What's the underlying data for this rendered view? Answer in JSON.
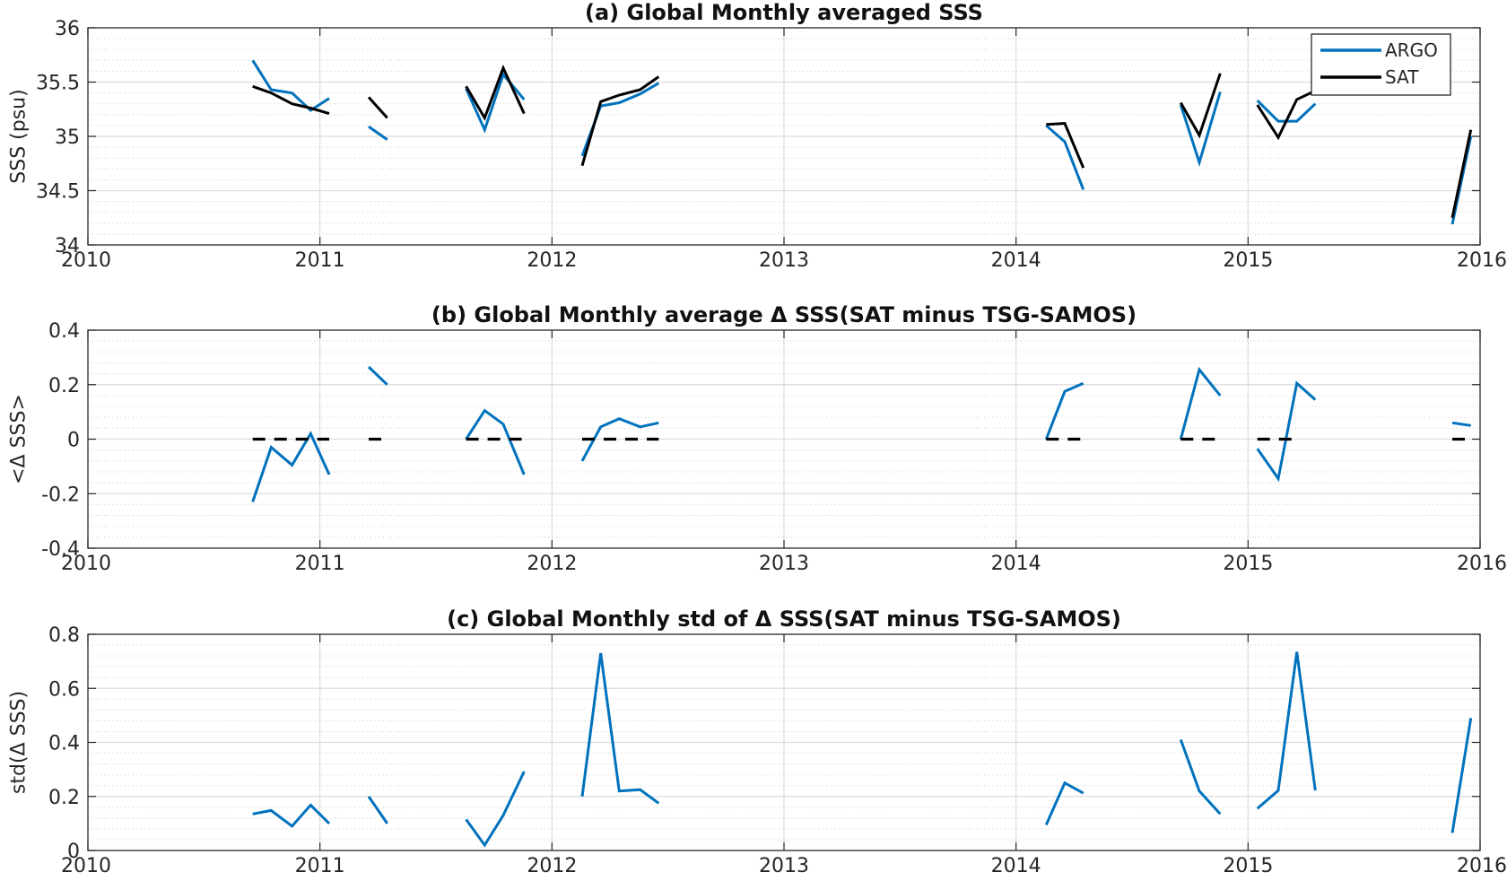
{
  "chart_data": [
    {
      "type": "line",
      "title": "(a) Global Monthly averaged SSS",
      "xlabel": "",
      "ylabel": "SSS (psu)",
      "xlim": [
        2010,
        2016
      ],
      "ylim": [
        34,
        36
      ],
      "xticks": [
        "2010",
        "2011",
        "2012",
        "2013",
        "2014",
        "2015",
        "2016"
      ],
      "yticks": [
        "34",
        "34.5",
        "35",
        "35.5",
        "36"
      ],
      "grid": true,
      "minor_grid": true,
      "legend": {
        "placement": "top-right",
        "entries": [
          "ARGO",
          "SAT"
        ]
      },
      "series": [
        {
          "name": "ARGO",
          "color": "#0072BD",
          "segments": [
            [
              [
                2010.71,
                35.7
              ],
              [
                2010.79,
                35.43
              ],
              [
                2010.88,
                35.4
              ],
              [
                2010.96,
                35.24
              ],
              [
                2011.04,
                35.35
              ]
            ],
            [
              [
                2011.21,
                35.09
              ],
              [
                2011.29,
                34.97
              ]
            ],
            [
              [
                2011.63,
                35.44
              ],
              [
                2011.71,
                35.06
              ],
              [
                2011.79,
                35.57
              ],
              [
                2011.88,
                35.34
              ]
            ],
            [
              [
                2012.13,
                34.82
              ],
              [
                2012.21,
                35.28
              ],
              [
                2012.29,
                35.31
              ],
              [
                2012.38,
                35.39
              ],
              [
                2012.46,
                35.49
              ]
            ],
            [
              [
                2014.13,
                35.1
              ],
              [
                2014.21,
                34.95
              ],
              [
                2014.29,
                34.51
              ]
            ],
            [
              [
                2014.71,
                35.29
              ],
              [
                2014.79,
                34.76
              ],
              [
                2014.88,
                35.41
              ]
            ],
            [
              [
                2015.04,
                35.33
              ],
              [
                2015.13,
                35.14
              ],
              [
                2015.21,
                35.14
              ],
              [
                2015.29,
                35.3
              ]
            ],
            [
              [
                2015.88,
                34.19
              ],
              [
                2015.96,
                35.0
              ]
            ]
          ]
        },
        {
          "name": "SAT",
          "color": "#000000",
          "segments": [
            [
              [
                2010.71,
                35.46
              ],
              [
                2010.79,
                35.4
              ],
              [
                2010.88,
                35.3
              ],
              [
                2010.96,
                35.26
              ],
              [
                2011.04,
                35.21
              ]
            ],
            [
              [
                2011.21,
                35.36
              ],
              [
                2011.29,
                35.17
              ]
            ],
            [
              [
                2011.63,
                35.46
              ],
              [
                2011.71,
                35.17
              ],
              [
                2011.79,
                35.63
              ],
              [
                2011.88,
                35.21
              ]
            ],
            [
              [
                2012.13,
                34.73
              ],
              [
                2012.21,
                35.32
              ],
              [
                2012.29,
                35.38
              ],
              [
                2012.38,
                35.43
              ],
              [
                2012.46,
                35.55
              ]
            ],
            [
              [
                2014.13,
                35.11
              ],
              [
                2014.21,
                35.12
              ],
              [
                2014.29,
                34.71
              ]
            ],
            [
              [
                2014.71,
                35.31
              ],
              [
                2014.79,
                35.01
              ],
              [
                2014.88,
                35.58
              ]
            ],
            [
              [
                2015.04,
                35.29
              ],
              [
                2015.13,
                34.99
              ],
              [
                2015.21,
                35.34
              ],
              [
                2015.29,
                35.42
              ],
              [
                2015.33,
                35.46
              ]
            ],
            [
              [
                2015.88,
                34.25
              ],
              [
                2015.96,
                35.06
              ]
            ]
          ]
        }
      ]
    },
    {
      "type": "line",
      "title": "(b) Global Monthly average Δ SSS(SAT minus TSG-SAMOS)",
      "xlabel": "",
      "ylabel": "<Δ SSS>",
      "xlim": [
        2010,
        2016
      ],
      "ylim": [
        -0.4,
        0.4
      ],
      "xticks": [
        "2010",
        "2011",
        "2012",
        "2013",
        "2014",
        "2015",
        "2016"
      ],
      "yticks": [
        "-0.4",
        "-0.2",
        "0",
        "0.2",
        "0.4"
      ],
      "grid": true,
      "minor_grid": true,
      "series": [
        {
          "color": "#0072BD",
          "segments": [
            [
              [
                2010.71,
                -0.23
              ],
              [
                2010.79,
                -0.03
              ],
              [
                2010.88,
                -0.095
              ],
              [
                2010.96,
                0.02
              ],
              [
                2011.04,
                -0.13
              ]
            ],
            [
              [
                2011.21,
                0.265
              ],
              [
                2011.29,
                0.2
              ]
            ],
            [
              [
                2011.63,
                0.0
              ],
              [
                2011.71,
                0.105
              ],
              [
                2011.79,
                0.055
              ],
              [
                2011.88,
                -0.13
              ]
            ],
            [
              [
                2012.13,
                -0.08
              ],
              [
                2012.21,
                0.045
              ],
              [
                2012.29,
                0.075
              ],
              [
                2012.38,
                0.045
              ],
              [
                2012.46,
                0.06
              ]
            ],
            [
              [
                2014.13,
                0.0
              ],
              [
                2014.21,
                0.175
              ],
              [
                2014.29,
                0.205
              ]
            ],
            [
              [
                2014.71,
                0.0
              ],
              [
                2014.79,
                0.255
              ],
              [
                2014.88,
                0.16
              ]
            ],
            [
              [
                2015.04,
                -0.035
              ],
              [
                2015.13,
                -0.145
              ],
              [
                2015.21,
                0.205
              ],
              [
                2015.29,
                0.145
              ]
            ],
            [
              [
                2015.88,
                0.06
              ],
              [
                2015.96,
                0.05
              ]
            ]
          ]
        },
        {
          "color": "#000000",
          "style": "dashed",
          "segments": [
            [
              [
                2010.71,
                0
              ],
              [
                2011.04,
                0
              ]
            ],
            [
              [
                2011.21,
                0
              ],
              [
                2011.29,
                0
              ]
            ],
            [
              [
                2011.63,
                0
              ],
              [
                2011.88,
                0
              ]
            ],
            [
              [
                2012.13,
                0
              ],
              [
                2012.46,
                0
              ]
            ],
            [
              [
                2014.13,
                0
              ],
              [
                2014.29,
                0
              ]
            ],
            [
              [
                2014.71,
                0
              ],
              [
                2014.88,
                0
              ]
            ],
            [
              [
                2015.04,
                0
              ],
              [
                2015.21,
                0
              ]
            ],
            [
              [
                2015.88,
                0
              ],
              [
                2015.96,
                0
              ]
            ]
          ]
        }
      ]
    },
    {
      "type": "line",
      "title": "(c) Global Monthly std of Δ SSS(SAT minus TSG-SAMOS)",
      "xlabel": "",
      "ylabel": "std(Δ SSS)",
      "xlim": [
        2010,
        2016
      ],
      "ylim": [
        0,
        0.8
      ],
      "xticks": [
        "2010",
        "2011",
        "2012",
        "2013",
        "2014",
        "2015",
        "2016"
      ],
      "yticks": [
        "0",
        "0.2",
        "0.4",
        "0.6",
        "0.8"
      ],
      "grid": true,
      "minor_grid": true,
      "series": [
        {
          "color": "#0072BD",
          "segments": [
            [
              [
                2010.71,
                0.135
              ],
              [
                2010.79,
                0.148
              ],
              [
                2010.88,
                0.09
              ],
              [
                2010.96,
                0.168
              ],
              [
                2011.04,
                0.1
              ]
            ],
            [
              [
                2011.21,
                0.2
              ],
              [
                2011.29,
                0.1
              ]
            ],
            [
              [
                2011.63,
                0.115
              ],
              [
                2011.71,
                0.02
              ],
              [
                2011.79,
                0.13
              ],
              [
                2011.88,
                0.292
              ]
            ],
            [
              [
                2012.13,
                0.2
              ],
              [
                2012.21,
                0.73
              ],
              [
                2012.29,
                0.22
              ],
              [
                2012.38,
                0.225
              ],
              [
                2012.46,
                0.175
              ]
            ],
            [
              [
                2014.13,
                0.095
              ],
              [
                2014.21,
                0.25
              ],
              [
                2014.29,
                0.212
              ]
            ],
            [
              [
                2014.71,
                0.41
              ],
              [
                2014.79,
                0.22
              ],
              [
                2014.88,
                0.135
              ]
            ],
            [
              [
                2015.04,
                0.155
              ],
              [
                2015.13,
                0.222
              ],
              [
                2015.21,
                0.735
              ],
              [
                2015.29,
                0.222
              ]
            ],
            [
              [
                2015.88,
                0.065
              ],
              [
                2015.96,
                0.49
              ]
            ]
          ]
        }
      ]
    }
  ]
}
